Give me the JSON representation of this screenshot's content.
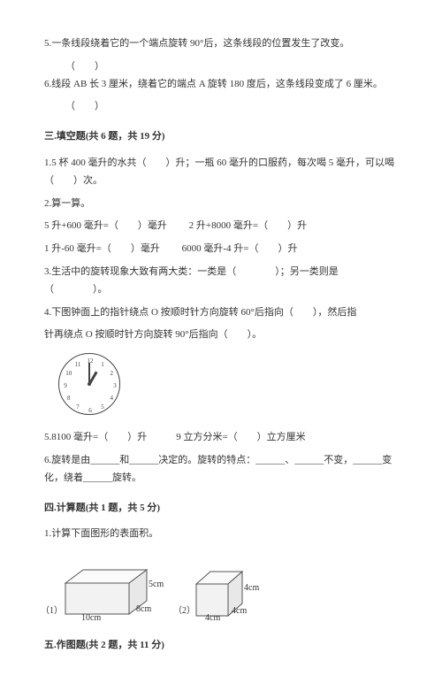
{
  "top": {
    "q5": "5.一条线段绕着它的一个端点旋转 90°后，这条线段的位置发生了改变。",
    "paren5": "（　　）",
    "q6": "6.线段 AB 长 3 厘米，绕着它的端点 A 旋转 180 度后，这条线段变成了 6 厘米。",
    "paren6": "（　　）"
  },
  "sec3": {
    "title": "三.填空题(共 6 题，共 19 分)",
    "q1": "1.5 杯 400 毫升的水共（　　）升；一瓶 60 毫升的口服药，每次喝 5 毫升，可以喝（　　）次。",
    "q2": "2.算一算。",
    "eq1a": "5 升+600 毫升=（　　）毫升",
    "eq1b": "2 升+8000 毫升=（　　）升",
    "eq2a": "1 升-60 毫升=（　　）毫升",
    "eq2b": "6000 毫升-4 升=（　　）升",
    "q3": "3.生活中的旋转现象大致有两大类：一类是（　　　　）；另一类则是（　　　　）。",
    "q4a": "4.下图钟面上的指针绕点 O 按顺时针方向旋转 60°后指向（　　），然后指",
    "q4b": "针再绕点 O 按顺时针方向旋转 90°后指向（　　）。",
    "q5": "5.8100 毫升=（　　）升　　　9 立方分米=（　　）立方厘米",
    "q6": "6.旋转是由______和______决定的。旋转的特点：______、______不变，______变化，绕着______旋转。"
  },
  "sec4": {
    "title": "四.计算题(共 1 题，共 5 分)",
    "q1": "1.计算下面图形的表面积。"
  },
  "sec5": {
    "title": "五.作图题(共 2 题，共 11 分)"
  },
  "clock": {
    "numbers": [
      "12",
      "1",
      "2",
      "3",
      "4",
      "5",
      "6",
      "7",
      "8",
      "9",
      "10",
      "11"
    ],
    "hour_angle_deg": -60,
    "minute_angle_deg": -90
  },
  "cuboid": {
    "label_num1": "（1）",
    "l_label": "10cm",
    "w_label": "8cm",
    "h_label": "5cm",
    "stroke": "#555",
    "fill": "#f2f2f2"
  },
  "cube": {
    "label_num2": "（2）",
    "a_label": "4cm",
    "stroke": "#555",
    "fill": "#f2f2f2"
  }
}
